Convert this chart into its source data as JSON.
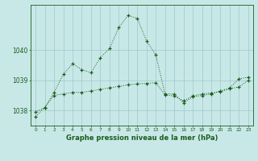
{
  "line1": [
    1037.8,
    1038.1,
    1038.6,
    1039.2,
    1039.55,
    1039.35,
    1039.25,
    1039.75,
    1040.05,
    1040.75,
    1041.15,
    1041.05,
    1040.3,
    1039.85,
    1038.55,
    1038.55,
    1038.25,
    1038.45,
    1038.5,
    1038.55,
    1038.65,
    1038.75,
    1039.05,
    1039.1
  ],
  "line2": [
    1037.95,
    1038.1,
    1038.5,
    1038.55,
    1038.6,
    1038.6,
    1038.65,
    1038.7,
    1038.75,
    1038.8,
    1038.85,
    1038.88,
    1038.9,
    1038.92,
    1038.52,
    1038.48,
    1038.32,
    1038.48,
    1038.55,
    1038.58,
    1038.62,
    1038.72,
    1038.78,
    1039.0
  ],
  "x": [
    0,
    1,
    2,
    3,
    4,
    5,
    6,
    7,
    8,
    9,
    10,
    11,
    12,
    13,
    14,
    15,
    16,
    17,
    18,
    19,
    20,
    21,
    22,
    23
  ],
  "ylim": [
    1037.5,
    1041.5
  ],
  "yticks": [
    1038,
    1039,
    1040
  ],
  "xtick_labels": [
    "0",
    "1",
    "2",
    "3",
    "4",
    "5",
    "6",
    "7",
    "8",
    "9",
    "10",
    "11",
    "12",
    "13",
    "14",
    "15",
    "16",
    "17",
    "18",
    "19",
    "20",
    "21",
    "22",
    "23"
  ],
  "bg_color": "#c8e8e8",
  "line_color": "#1a5c1a",
  "grid_color": "#9fc8c8",
  "xlabel": "Graphe pression niveau de la mer (hPa)",
  "figsize": [
    3.2,
    2.0
  ],
  "dpi": 100
}
